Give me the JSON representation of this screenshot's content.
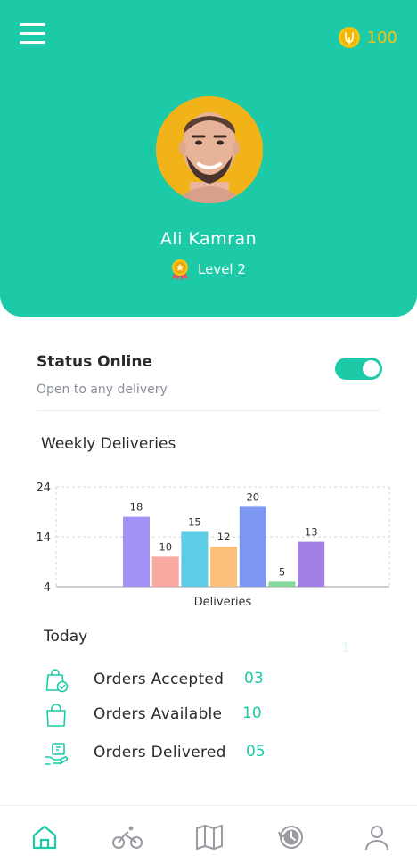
{
  "header": {
    "coins": "100",
    "user_name": "Ali Kamran",
    "level": "Level 2"
  },
  "status": {
    "title": "Status Online",
    "subtitle": "Open  to any delivery",
    "online": true
  },
  "weekly": {
    "title": "Weekly Deliveries"
  },
  "chart_data": {
    "type": "bar",
    "categories": [
      "",
      "",
      "",
      "",
      "",
      "",
      ""
    ],
    "values": [
      18,
      10,
      15,
      12,
      20,
      5,
      13
    ],
    "colors": [
      "#a491f6",
      "#f9a8a2",
      "#5dcde5",
      "#fdc07a",
      "#7d98f2",
      "#86d79a",
      "#a47fe6"
    ],
    "xlabel": "Deliveries",
    "ylabel": "",
    "yticks": [
      "4",
      "14",
      "24"
    ],
    "ylim": [
      4,
      24
    ],
    "grid": true,
    "data_labels": true
  },
  "today": {
    "title": "Today",
    "ghost": "1",
    "items": [
      {
        "label": "Orders Accepted",
        "value": "03",
        "icon": "bag-check-icon"
      },
      {
        "label": "Orders Available",
        "value": "10",
        "icon": "shopping-bag-icon"
      },
      {
        "label": "Orders Delivered",
        "value": "05",
        "icon": "delivered-hand-icon"
      }
    ]
  },
  "nav": {
    "items": [
      "home-icon",
      "bicycle-icon",
      "map-icon",
      "history-icon",
      "profile-icon"
    ],
    "active_color": "#1ccaa8",
    "inactive_color": "#9a9aa2"
  }
}
